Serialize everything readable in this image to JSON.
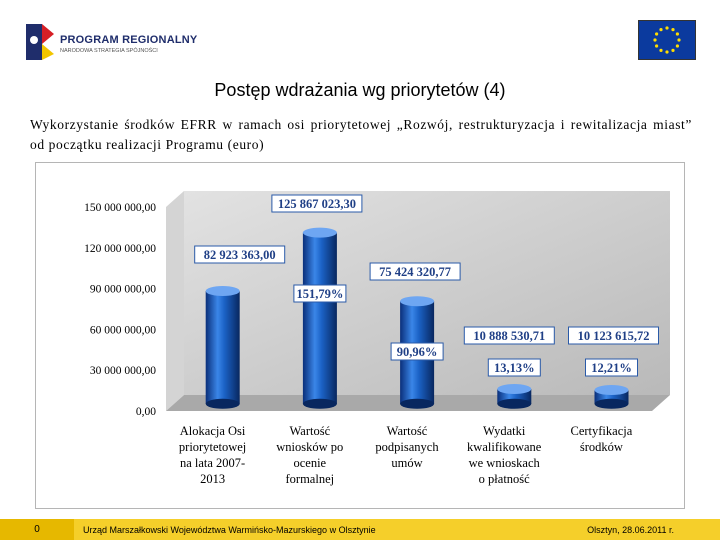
{
  "header": {
    "logo_title": "PROGRAM REGIONALNY",
    "logo_subtitle": "NARODOWA STRATEGIA SPÓJNOŚCI",
    "logo_icon": "program-regionalny-logo",
    "flag_icon": "eu-flag",
    "colors": {
      "logo_blue": "#1f2d6b",
      "flag_blue": "#0b3a9e",
      "flag_stars": "#ffdd00"
    }
  },
  "slide": {
    "title": "Postęp wdrażania wg priorytetów (4)",
    "subtitle": "Wykorzystanie środków EFRR w ramach osi priorytetowej „Rozwój, restrukturyzacja i rewitalizacja miast” od początku realizacji Programu (euro)"
  },
  "chart_data": {
    "type": "bar",
    "style": "3d-cylinder",
    "title": "",
    "xlabel": "",
    "ylabel": "",
    "ylim": [
      0,
      150000000
    ],
    "ytick_values": [
      0,
      30000000,
      60000000,
      90000000,
      120000000,
      150000000
    ],
    "ytick_labels": [
      "0,00",
      "30 000 000,00",
      "60 000 000,00",
      "90 000 000,00",
      "120 000 000,00",
      "150 000 000,00"
    ],
    "grid": false,
    "legend": "none",
    "categories": [
      [
        "Alokacja Osi",
        "priorytetowej",
        "na lata 2007-",
        "2013"
      ],
      [
        "Wartość",
        "wniosków po",
        "ocenie",
        "formalnej"
      ],
      [
        "Wartość",
        "podpisanych",
        "umów"
      ],
      [
        "Wydatki",
        "kwalifikowane",
        "we wnioskach",
        "o płatność"
      ],
      [
        "Certyfikacja",
        "środków"
      ]
    ],
    "values": [
      82923363.0,
      125867023.3,
      75424320.77,
      10888530.71,
      10123615.72
    ],
    "value_labels": [
      "82 923 363,00",
      "125 867 023,30",
      "75 424 320,77",
      "10 888 530,71",
      "10 123 615,72"
    ],
    "percent_labels": [
      "",
      "151,79%",
      "90,96%",
      "13,13%",
      "12,21%"
    ],
    "colors": {
      "bar": "#1b62c6",
      "bar_dark": "#0a2f7a",
      "bar_light": "#6ea6f2",
      "wall": "#c9c9c9",
      "floor": "#a9a9a9",
      "label_border": "#2a5aa8"
    }
  },
  "footer": {
    "page_number": "0",
    "organization": "Urząd Marszałkowski Województwa Warmińsko-Mazurskiego w Olsztynie",
    "place_date": "Olsztyn, 28.06.2011 r.",
    "colors": {
      "bar_left": "#e6b800",
      "bar_main": "#f5cf2a"
    }
  }
}
